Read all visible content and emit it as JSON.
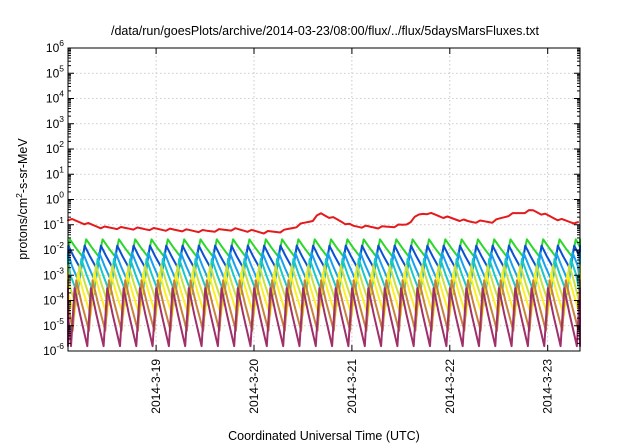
{
  "chart_data": {
    "type": "line",
    "title": "/data/run/goesPlots/archive/2014-03-23/08:00/flux/../flux/5daysMarsFluxes.txt",
    "xlabel": "Coordinated Universal Time (UTC)",
    "ylabel": "protons/cm²-s-sr-MeV",
    "ylabel_parts": {
      "before": "protons/cm",
      "sup": "2",
      "after": "-s-sr-MeV"
    },
    "y_scale": "log",
    "ylim_exponents": [
      -6,
      6
    ],
    "y_ticks": [
      {
        "base": "10",
        "exp": "-6"
      },
      {
        "base": "10",
        "exp": "-5"
      },
      {
        "base": "10",
        "exp": "-4"
      },
      {
        "base": "10",
        "exp": "-3"
      },
      {
        "base": "10",
        "exp": "-2"
      },
      {
        "base": "10",
        "exp": "-1"
      },
      {
        "base": "10",
        "exp": "0"
      },
      {
        "base": "10",
        "exp": "1"
      },
      {
        "base": "10",
        "exp": "2"
      },
      {
        "base": "10",
        "exp": "3"
      },
      {
        "base": "10",
        "exp": "4"
      },
      {
        "base": "10",
        "exp": "5"
      },
      {
        "base": "10",
        "exp": "6"
      }
    ],
    "xlim_days": [
      18.1,
      23.33
    ],
    "x_ticks": [
      {
        "label": "2014-3-19",
        "day": 19
      },
      {
        "label": "2014-3-20",
        "day": 20
      },
      {
        "label": "2014-3-21",
        "day": 21
      },
      {
        "label": "2014-3-22",
        "day": 22
      },
      {
        "label": "2014-3-23",
        "day": 23
      }
    ],
    "grid": true,
    "legend": "none",
    "series": [
      {
        "color": "#e41a1c",
        "base": 0.0706,
        "amp": 0.54,
        "points": [
          [
            18.1,
            0.15
          ],
          [
            18.45,
            0.07
          ],
          [
            19.0,
            0.06
          ],
          [
            19.5,
            0.05
          ],
          [
            19.8,
            0.06
          ],
          [
            20.1,
            0.045
          ],
          [
            20.3,
            0.05
          ],
          [
            20.6,
            0.14
          ],
          [
            20.68,
            0.25
          ],
          [
            20.9,
            0.12
          ],
          [
            21.0,
            0.08
          ],
          [
            21.3,
            0.07
          ],
          [
            21.55,
            0.09
          ],
          [
            21.68,
            0.22
          ],
          [
            21.75,
            0.27
          ],
          [
            21.95,
            0.18
          ],
          [
            22.2,
            0.12
          ],
          [
            22.45,
            0.12
          ],
          [
            22.6,
            0.22
          ],
          [
            22.85,
            0.33
          ],
          [
            23.1,
            0.15
          ],
          [
            23.33,
            0.1
          ]
        ]
      },
      {
        "color": "#2ad82a",
        "base": 0.0119,
        "amp": 0.7
      },
      {
        "color": "#0a50d2",
        "base": 0.005,
        "amp": 0.95
      },
      {
        "color": "#1aa0f0",
        "base": 0.002,
        "amp": 1.2
      },
      {
        "color": "#18c9c4",
        "base": 0.00089,
        "amp": 1.4
      },
      {
        "color": "#c8e040",
        "base": 0.0004,
        "amp": 1.6
      },
      {
        "color": "#ffee22",
        "base": 0.00018,
        "amp": 1.7
      },
      {
        "color": "#c8823c",
        "base": 6.3e-05,
        "amp": 2.0
      },
      {
        "color": "#a0306a",
        "base": 2.2e-05,
        "amp": 2.3
      }
    ],
    "oscillation_period_days": 0.1667
  }
}
